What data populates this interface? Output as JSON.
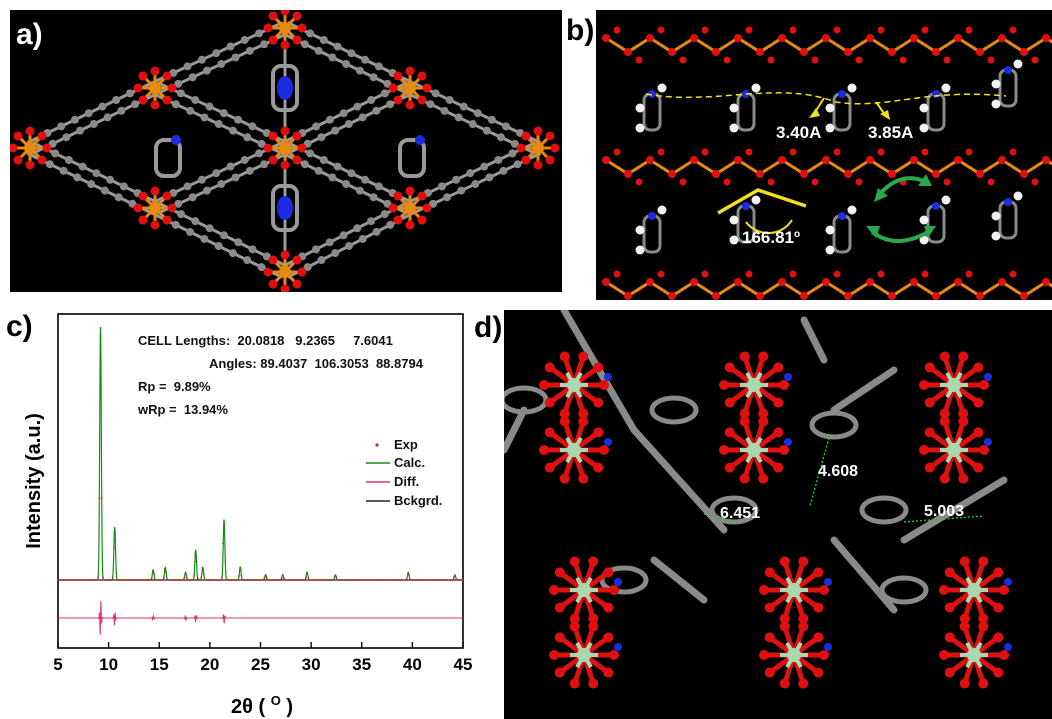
{
  "panels": {
    "a": {
      "label": "a)"
    },
    "b": {
      "label": "b)",
      "dist1": "3.40A",
      "dist2": "3.85A",
      "angle": "166.81",
      "angle_unit": "o"
    },
    "c": {
      "label": "c)",
      "cell_lengths": "CELL Lengths:  20.0818   9.2365     7.6041",
      "angles": "Angles: 89.4037  106.3053  88.8794",
      "rp": "Rp =  9.89%",
      "wrp": "wRp =  13.94%"
    },
    "d": {
      "label": "d)",
      "dist1": "4.608",
      "dist2": "6.451",
      "dist3": "5.003"
    }
  },
  "colors": {
    "oxygen": "#e01010",
    "metal_ab": "#e88a10",
    "carbon": "#8a8a8a",
    "nitrogen": "#1a2ee0",
    "hydrogen": "#f2f2f2",
    "metal_d": "#a8d8b0",
    "bond_yellow": "#f0e020",
    "arrow_green": "#2aa84a",
    "contact_green": "#22cc22",
    "exp": "#b03030",
    "calc": "#109010",
    "diff": "#e0307a",
    "bckgrd": "#222222"
  },
  "chart_data": {
    "type": "line",
    "xlabel": "2θ ( O )",
    "ylabel": "Intensity (a.u.)",
    "xlim": [
      5,
      45
    ],
    "xticks": [
      "5",
      "10",
      "15",
      "20",
      "25",
      "30",
      "35",
      "40",
      "45"
    ],
    "ylim": [
      0,
      1
    ],
    "legend": [
      "Exp",
      "Calc.",
      "Diff.",
      "Bckgrd."
    ],
    "legend_position": "right",
    "series": [
      {
        "name": "Exp",
        "peaks": [
          [
            9.2,
            1.0
          ],
          [
            10.6,
            0.21
          ],
          [
            14.4,
            0.04
          ],
          [
            15.6,
            0.05
          ],
          [
            17.6,
            0.03
          ],
          [
            18.6,
            0.12
          ],
          [
            19.3,
            0.05
          ],
          [
            21.4,
            0.24
          ],
          [
            23.0,
            0.05
          ],
          [
            25.5,
            0.02
          ],
          [
            27.2,
            0.02
          ],
          [
            29.6,
            0.03
          ],
          [
            32.4,
            0.02
          ],
          [
            39.6,
            0.03
          ],
          [
            44.2,
            0.02
          ]
        ]
      },
      {
        "name": "Calc.",
        "peaks": [
          [
            9.2,
            1.0
          ],
          [
            10.6,
            0.21
          ],
          [
            14.4,
            0.04
          ],
          [
            15.6,
            0.05
          ],
          [
            17.6,
            0.03
          ],
          [
            18.6,
            0.12
          ],
          [
            19.3,
            0.05
          ],
          [
            21.4,
            0.24
          ],
          [
            23.0,
            0.05
          ],
          [
            25.5,
            0.02
          ],
          [
            27.2,
            0.02
          ],
          [
            29.6,
            0.03
          ],
          [
            32.4,
            0.02
          ],
          [
            39.6,
            0.03
          ],
          [
            44.2,
            0.02
          ]
        ]
      },
      {
        "name": "Diff.",
        "peaks": [
          [
            9.2,
            0.08
          ],
          [
            10.6,
            0.03
          ],
          [
            14.4,
            0.01
          ],
          [
            17.6,
            0.01
          ],
          [
            18.6,
            0.015
          ],
          [
            21.4,
            0.02
          ]
        ]
      },
      {
        "name": "Bckgrd.",
        "value": 0.0
      }
    ]
  }
}
